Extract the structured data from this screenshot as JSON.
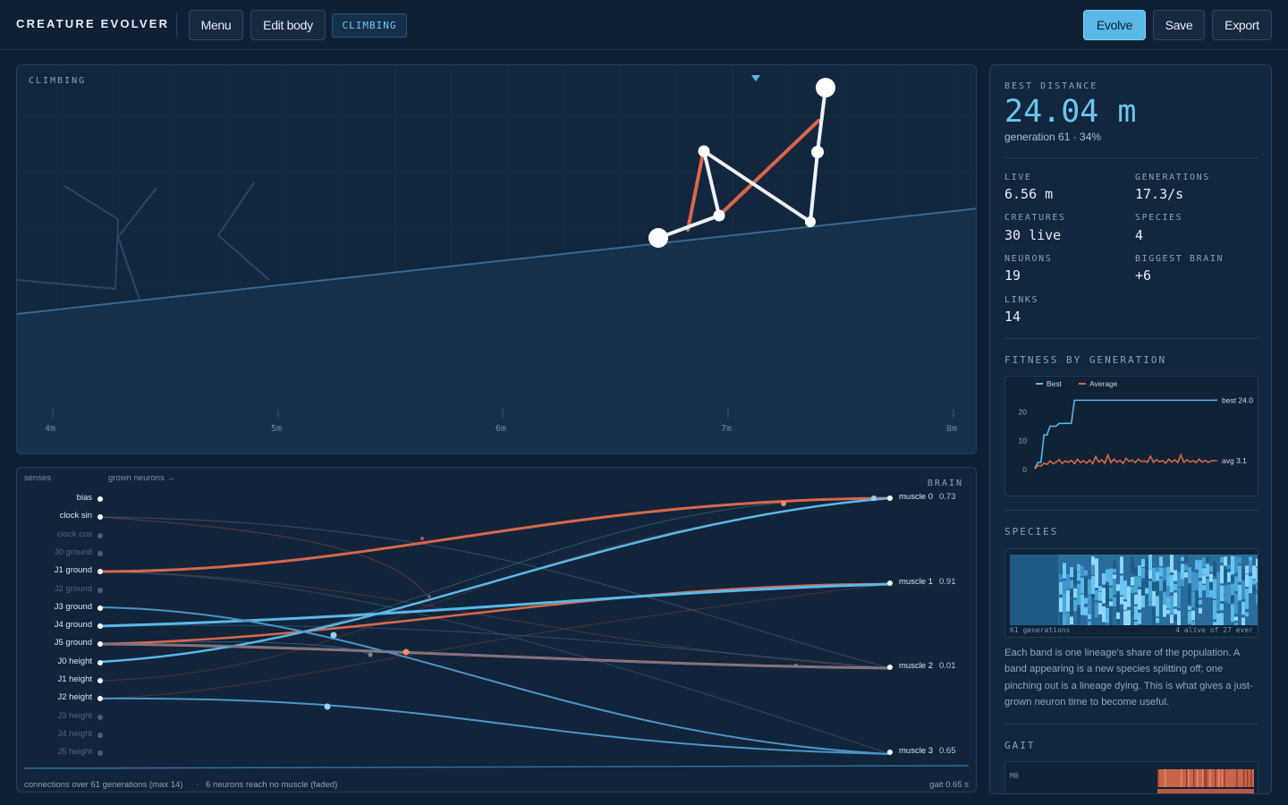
{
  "app": {
    "title": "CREATURE EVOLVER"
  },
  "toolbar": {
    "menu_label": "Menu",
    "edit_body_label": "Edit body",
    "mode_tag": "CLIMBING",
    "evolve_label": "Evolve",
    "save_label": "Save",
    "export_label": "Export"
  },
  "sim": {
    "label": "CLIMBING",
    "ruler": [
      "4m",
      "5m",
      "6m",
      "7m",
      "8m"
    ]
  },
  "brain": {
    "title": "BRAIN",
    "col_senses": "senses",
    "col_grown": "grown neurons →",
    "inputs": [
      {
        "label": "bias",
        "active": true
      },
      {
        "label": "clock sin",
        "active": true
      },
      {
        "label": "clock cos",
        "active": false
      },
      {
        "label": "J0 ground",
        "active": false
      },
      {
        "label": "J1 ground",
        "active": true
      },
      {
        "label": "J2 ground",
        "active": false
      },
      {
        "label": "J3 ground",
        "active": true
      },
      {
        "label": "J4 ground",
        "active": true
      },
      {
        "label": "J5 ground",
        "active": true
      },
      {
        "label": "J0 height",
        "active": true
      },
      {
        "label": "J1 height",
        "active": true
      },
      {
        "label": "J2 height",
        "active": true
      },
      {
        "label": "J3 height",
        "active": false
      },
      {
        "label": "J4 height",
        "active": false
      },
      {
        "label": "J5 height",
        "active": false
      }
    ],
    "outputs": [
      {
        "label": "muscle 0",
        "value": "0.73"
      },
      {
        "label": "muscle 1",
        "value": "0.91"
      },
      {
        "label": "muscle 2",
        "value": "0.01"
      },
      {
        "label": "muscle 3",
        "value": "0.65"
      }
    ],
    "footer_left": "connections over 61 generations (max 14)",
    "footer_sep": "·",
    "footer_mid": "6 neurons reach no muscle (faded)",
    "footer_right": "gait 0.65 s"
  },
  "sidebar": {
    "best_label": "BEST DISTANCE",
    "best_value": "24.04 m",
    "best_sub": "generation 61 · 34%",
    "stats": [
      {
        "key": "LIVE",
        "value": "6.56 m"
      },
      {
        "key": "GENERATIONS",
        "value": "17.3/s"
      },
      {
        "key": "CREATURES",
        "value": "30 live"
      },
      {
        "key": "SPECIES",
        "value": "4"
      },
      {
        "key": "NEURONS",
        "value": "19"
      },
      {
        "key": "BIGGEST BRAIN",
        "value": "+6"
      },
      {
        "key": "LINKS",
        "value": "14"
      }
    ],
    "fitness_label": "FITNESS BY GENERATION",
    "species_label": "SPECIES",
    "species_footer_left": "61 generations",
    "species_footer_right": "4 alive of 27 ever",
    "species_desc": "Each band is one lineage's share of the population. A band appearing is a new species splitting off; one pinching out is a lineage dying. This is what gives a just-grown neuron time to become useful.",
    "gait_label": "GAIT",
    "gait_row": "M0"
  },
  "colors": {
    "accent": "#5ab8e8",
    "muscle": "#d9674a",
    "background": "#0f1f33",
    "panel": "#12263d"
  },
  "chart_data": {
    "type": "line",
    "title": "",
    "xlabel": "",
    "ylabel": "",
    "ylim": [
      0,
      26
    ],
    "yticks": [
      0,
      10,
      20
    ],
    "legend": "top-left",
    "x": [
      1,
      2,
      3,
      4,
      5,
      6,
      7,
      8,
      9,
      10,
      11,
      12,
      13,
      14,
      15,
      16,
      17,
      18,
      19,
      20,
      21,
      22,
      23,
      24,
      25,
      26,
      27,
      28,
      29,
      30,
      31,
      32,
      33,
      34,
      35,
      36,
      37,
      38,
      39,
      40,
      41,
      42,
      43,
      44,
      45,
      46,
      47,
      48,
      49,
      50,
      51,
      52,
      53,
      54,
      55,
      56,
      57,
      58,
      59,
      60,
      61
    ],
    "series": [
      {
        "name": "Best",
        "end_label": "best 24.0",
        "values": [
          0.5,
          2.5,
          2.5,
          12,
          12,
          15,
          15,
          15,
          16,
          16,
          16,
          16,
          16,
          24,
          24,
          24,
          24,
          24,
          24,
          24,
          24,
          24,
          24,
          24,
          24,
          24,
          24,
          24,
          24,
          24,
          24,
          24,
          24,
          24,
          24,
          24,
          24,
          24,
          24,
          24,
          24,
          24,
          24,
          24,
          24,
          24,
          24,
          24,
          24,
          24,
          24,
          24,
          24,
          24,
          24,
          24,
          24,
          24,
          24,
          24,
          24.04
        ]
      },
      {
        "name": "Average",
        "end_label": "avg 3.1",
        "values": [
          0.2,
          1.5,
          1.2,
          2.2,
          1.8,
          3.0,
          2.0,
          2.6,
          3.4,
          2.1,
          3.0,
          2.5,
          3.2,
          2.0,
          3.6,
          2.4,
          3.1,
          2.2,
          3.3,
          2.0,
          4.5,
          2.6,
          3.4,
          2.2,
          5.0,
          2.4,
          3.6,
          2.6,
          3.2,
          2.1,
          3.9,
          2.8,
          3.3,
          2.4,
          3.6,
          2.8,
          3.0,
          2.5,
          4.6,
          2.5,
          3.4,
          2.7,
          3.1,
          2.2,
          3.6,
          2.6,
          3.4,
          2.4,
          5.0,
          2.5,
          3.4,
          2.6,
          3.1,
          2.4,
          3.6,
          2.6,
          3.2,
          2.5,
          3.0,
          3.1,
          3.1
        ]
      }
    ]
  }
}
